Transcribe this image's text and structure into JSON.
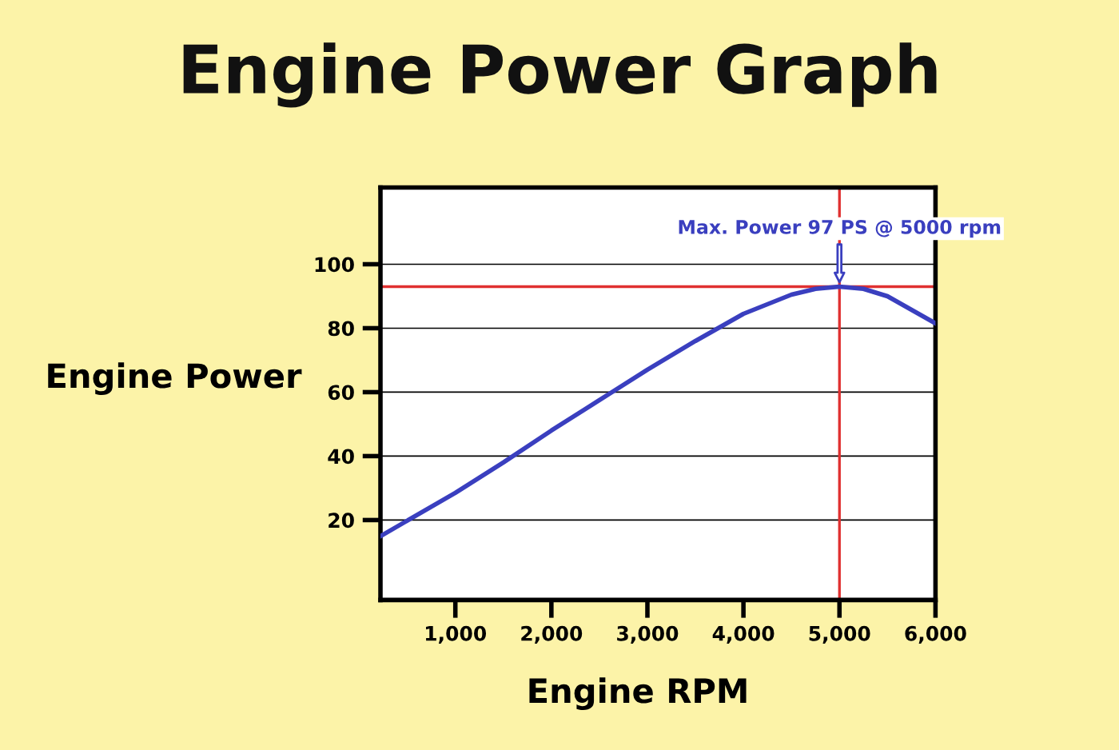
{
  "chart_data": {
    "type": "line",
    "title": "Engine Power Graph",
    "xlabel": "Engine RPM",
    "ylabel": "Engine Power",
    "x": [
      222,
      1000,
      1500,
      2000,
      2500,
      3000,
      3500,
      4000,
      4500,
      4750,
      5000,
      5250,
      5500,
      6000
    ],
    "series": [
      {
        "color": "#3a3fbf",
        "values": [
          15,
          28.5,
          38,
          48,
          57.5,
          67,
          76,
          84.5,
          90.5,
          92.3,
          93,
          92.3,
          90,
          81.5
        ]
      }
    ],
    "xlim": [
      220,
      6000
    ],
    "ylim": [
      -5,
      124
    ],
    "xticks": [
      {
        "value": 1000,
        "label": "1,000"
      },
      {
        "value": 2000,
        "label": "2,000"
      },
      {
        "value": 3000,
        "label": "3,000"
      },
      {
        "value": 4000,
        "label": "4,000"
      },
      {
        "value": 5000,
        "label": "5,000"
      },
      {
        "value": 6000,
        "label": "6,000"
      }
    ],
    "yticks": [
      20,
      40,
      60,
      80,
      100
    ],
    "grid": "y",
    "ref_lines": [
      {
        "axis": "y",
        "value": 93,
        "color": "#e03030"
      },
      {
        "axis": "x",
        "value": 5000,
        "color": "#e03030"
      }
    ],
    "annotations": [
      {
        "text": "Max. Power 97 PS @ 5000 rpm",
        "x": 5000,
        "y": 93
      }
    ]
  }
}
